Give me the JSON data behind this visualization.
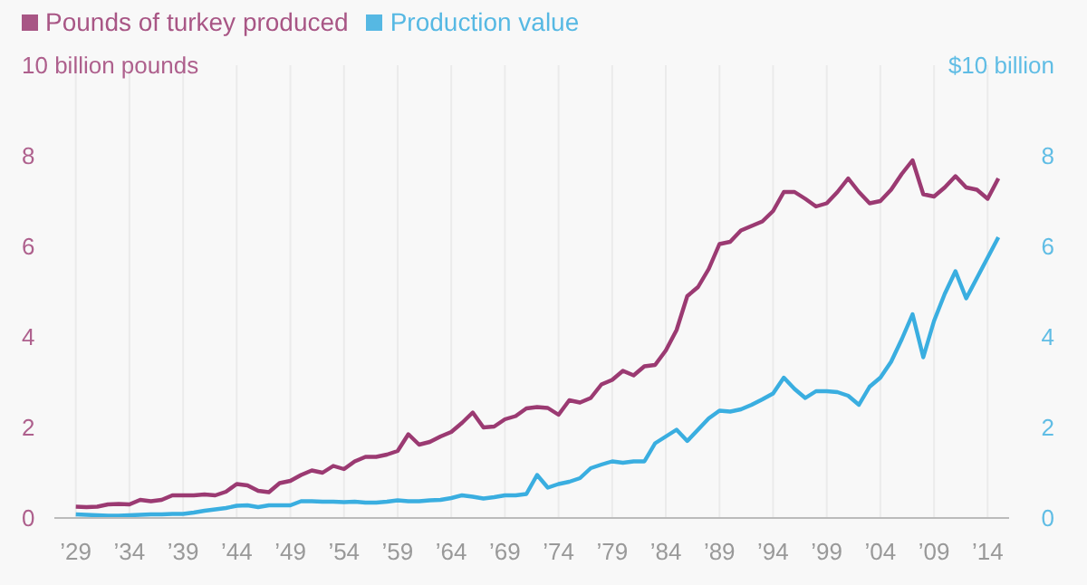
{
  "chart_data": {
    "type": "line",
    "x": [
      1929,
      1930,
      1931,
      1932,
      1933,
      1934,
      1935,
      1936,
      1937,
      1938,
      1939,
      1940,
      1941,
      1942,
      1943,
      1944,
      1945,
      1946,
      1947,
      1948,
      1949,
      1950,
      1951,
      1952,
      1953,
      1954,
      1955,
      1956,
      1957,
      1958,
      1959,
      1960,
      1961,
      1962,
      1963,
      1964,
      1965,
      1966,
      1967,
      1968,
      1969,
      1970,
      1971,
      1972,
      1973,
      1974,
      1975,
      1976,
      1977,
      1978,
      1979,
      1980,
      1981,
      1982,
      1983,
      1984,
      1985,
      1986,
      1987,
      1988,
      1989,
      1990,
      1991,
      1992,
      1993,
      1994,
      1995,
      1996,
      1997,
      1998,
      1999,
      2000,
      2001,
      2002,
      2003,
      2004,
      2005,
      2006,
      2007,
      2008,
      2009,
      2010,
      2011,
      2012,
      2013,
      2014,
      2015
    ],
    "series": [
      {
        "name": "Pounds of turkey produced",
        "color": "#9b3a72",
        "values": [
          0.25,
          0.24,
          0.25,
          0.3,
          0.31,
          0.3,
          0.4,
          0.37,
          0.4,
          0.5,
          0.5,
          0.5,
          0.52,
          0.5,
          0.58,
          0.75,
          0.72,
          0.6,
          0.57,
          0.77,
          0.82,
          0.95,
          1.05,
          1.0,
          1.15,
          1.08,
          1.25,
          1.35,
          1.35,
          1.4,
          1.48,
          1.85,
          1.62,
          1.68,
          1.8,
          1.9,
          2.1,
          2.33,
          2.0,
          2.02,
          2.18,
          2.25,
          2.42,
          2.45,
          2.43,
          2.28,
          2.6,
          2.55,
          2.65,
          2.95,
          3.05,
          3.25,
          3.15,
          3.35,
          3.38,
          3.7,
          4.15,
          4.9,
          5.1,
          5.5,
          6.05,
          6.1,
          6.35,
          6.45,
          6.55,
          6.78,
          7.2,
          7.2,
          7.05,
          6.88,
          6.95,
          7.2,
          7.5,
          7.2,
          6.95,
          7.0,
          7.25,
          7.6,
          7.9,
          7.15,
          7.1,
          7.3,
          7.55,
          7.3,
          7.25,
          7.05,
          7.5
        ]
      },
      {
        "name": "Production value",
        "color": "#3aaee0",
        "axis": "y2",
        "values": [
          0.08,
          0.07,
          0.06,
          0.05,
          0.05,
          0.06,
          0.07,
          0.08,
          0.08,
          0.09,
          0.09,
          0.12,
          0.16,
          0.19,
          0.22,
          0.27,
          0.28,
          0.24,
          0.28,
          0.28,
          0.28,
          0.37,
          0.37,
          0.36,
          0.36,
          0.35,
          0.36,
          0.34,
          0.34,
          0.36,
          0.39,
          0.37,
          0.37,
          0.39,
          0.4,
          0.44,
          0.5,
          0.47,
          0.43,
          0.46,
          0.5,
          0.5,
          0.53,
          0.95,
          0.67,
          0.75,
          0.8,
          0.88,
          1.1,
          1.18,
          1.25,
          1.22,
          1.25,
          1.25,
          1.65,
          1.8,
          1.95,
          1.7,
          1.95,
          2.2,
          2.37,
          2.35,
          2.4,
          2.5,
          2.62,
          2.75,
          3.1,
          2.85,
          2.65,
          2.8,
          2.8,
          2.78,
          2.7,
          2.5,
          2.9,
          3.1,
          3.45,
          3.95,
          4.5,
          3.55,
          4.35,
          4.95,
          5.45,
          4.85,
          5.3,
          5.75,
          6.2
        ]
      }
    ],
    "xlim": [
      1927,
      2016
    ],
    "xticks": [
      {
        "value": 1929,
        "label": "’29"
      },
      {
        "value": 1934,
        "label": "’34"
      },
      {
        "value": 1939,
        "label": "’39"
      },
      {
        "value": 1944,
        "label": "’44"
      },
      {
        "value": 1949,
        "label": "’49"
      },
      {
        "value": 1954,
        "label": "’54"
      },
      {
        "value": 1959,
        "label": "’59"
      },
      {
        "value": 1964,
        "label": "’64"
      },
      {
        "value": 1969,
        "label": "’69"
      },
      {
        "value": 1974,
        "label": "’74"
      },
      {
        "value": 1979,
        "label": "’79"
      },
      {
        "value": 1984,
        "label": "’84"
      },
      {
        "value": 1989,
        "label": "’89"
      },
      {
        "value": 1994,
        "label": "’94"
      },
      {
        "value": 1999,
        "label": "’99"
      },
      {
        "value": 2004,
        "label": "’04"
      },
      {
        "value": 2009,
        "label": "’09"
      },
      {
        "value": 2014,
        "label": "’14"
      }
    ],
    "ylim": [
      0,
      10
    ],
    "yticks": [
      0,
      2,
      4,
      6,
      8,
      {
        "value": 10,
        "label": "10 billion pounds"
      }
    ],
    "y2lim": [
      0,
      10
    ],
    "y2ticks": [
      0,
      2,
      4,
      6,
      8,
      {
        "value": 10,
        "label": "$10 billion"
      }
    ],
    "grid": true,
    "legend": "top left",
    "marker": "none",
    "line_style": "solid"
  }
}
